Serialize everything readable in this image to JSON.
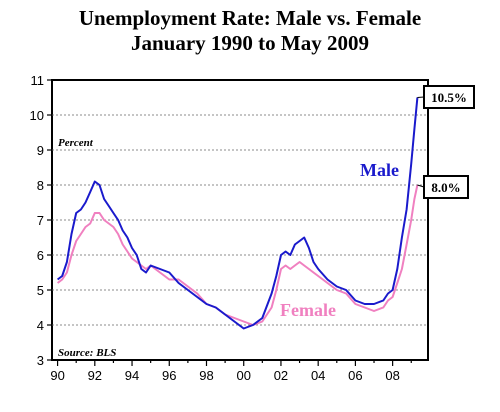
{
  "chart_data": {
    "type": "line",
    "title": "Unemployment Rate: Male vs. Female",
    "subtitle": "January 1990 to May 2009",
    "ylabel_note": "Percent",
    "source_note": "Source: BLS",
    "x_tick_labels": [
      "90",
      "92",
      "94",
      "96",
      "98",
      "00",
      "02",
      "04",
      "06",
      "08"
    ],
    "x_tick_years": [
      1990,
      1992,
      1994,
      1996,
      1998,
      2000,
      2002,
      2004,
      2006,
      2008
    ],
    "xlim": [
      1989.7,
      2009.9
    ],
    "ylim": [
      3,
      11
    ],
    "y_ticks": [
      3,
      4,
      5,
      6,
      7,
      8,
      9,
      10,
      11
    ],
    "grid": "horizontal dotted",
    "series": [
      {
        "name": "Male",
        "color": "#1a1acc",
        "x": [
          1990.0,
          1990.25,
          1990.5,
          1990.75,
          1991.0,
          1991.25,
          1991.5,
          1991.75,
          1992.0,
          1992.25,
          1992.5,
          1992.75,
          1993.0,
          1993.25,
          1993.5,
          1993.75,
          1994.0,
          1994.25,
          1994.5,
          1994.75,
          1995.0,
          1995.5,
          1996.0,
          1996.5,
          1997.0,
          1997.5,
          1998.0,
          1998.5,
          1999.0,
          1999.5,
          2000.0,
          2000.5,
          2001.0,
          2001.5,
          2001.75,
          2002.0,
          2002.25,
          2002.5,
          2002.75,
          2003.0,
          2003.25,
          2003.5,
          2003.75,
          2004.0,
          2004.5,
          2005.0,
          2005.5,
          2006.0,
          2006.5,
          2007.0,
          2007.5,
          2007.75,
          2008.0,
          2008.25,
          2008.5,
          2008.75,
          2009.0,
          2009.17,
          2009.33
        ],
        "values": [
          5.3,
          5.4,
          5.8,
          6.6,
          7.2,
          7.3,
          7.5,
          7.8,
          8.1,
          8.0,
          7.6,
          7.4,
          7.2,
          7.0,
          6.7,
          6.5,
          6.2,
          6.0,
          5.6,
          5.5,
          5.7,
          5.6,
          5.5,
          5.2,
          5.0,
          4.8,
          4.6,
          4.5,
          4.3,
          4.1,
          3.9,
          4.0,
          4.2,
          4.9,
          5.4,
          6.0,
          6.1,
          6.0,
          6.3,
          6.4,
          6.5,
          6.2,
          5.8,
          5.6,
          5.3,
          5.1,
          5.0,
          4.7,
          4.6,
          4.6,
          4.7,
          4.9,
          5.0,
          5.6,
          6.5,
          7.3,
          8.6,
          9.6,
          10.5
        ]
      },
      {
        "name": "Female",
        "color": "#f080c0",
        "x": [
          1990.0,
          1990.25,
          1990.5,
          1990.75,
          1991.0,
          1991.25,
          1991.5,
          1991.75,
          1992.0,
          1992.25,
          1992.5,
          1992.75,
          1993.0,
          1993.25,
          1993.5,
          1993.75,
          1994.0,
          1994.25,
          1994.5,
          1994.75,
          1995.0,
          1995.5,
          1996.0,
          1996.5,
          1997.0,
          1997.5,
          1998.0,
          1998.5,
          1999.0,
          1999.5,
          2000.0,
          2000.5,
          2001.0,
          2001.5,
          2001.75,
          2002.0,
          2002.25,
          2002.5,
          2002.75,
          2003.0,
          2003.25,
          2003.5,
          2003.75,
          2004.0,
          2004.5,
          2005.0,
          2005.5,
          2006.0,
          2006.5,
          2007.0,
          2007.5,
          2007.75,
          2008.0,
          2008.25,
          2008.5,
          2008.75,
          2009.0,
          2009.17,
          2009.33
        ],
        "values": [
          5.2,
          5.3,
          5.5,
          6.0,
          6.4,
          6.6,
          6.8,
          6.9,
          7.2,
          7.2,
          7.0,
          6.9,
          6.8,
          6.6,
          6.3,
          6.1,
          5.9,
          5.8,
          5.7,
          5.6,
          5.7,
          5.5,
          5.3,
          5.3,
          5.1,
          4.9,
          4.6,
          4.5,
          4.3,
          4.2,
          4.1,
          4.0,
          4.1,
          4.5,
          5.0,
          5.6,
          5.7,
          5.6,
          5.7,
          5.8,
          5.7,
          5.6,
          5.5,
          5.4,
          5.2,
          5.0,
          4.9,
          4.6,
          4.5,
          4.4,
          4.5,
          4.7,
          4.8,
          5.2,
          5.6,
          6.3,
          7.0,
          7.6,
          8.0
        ]
      }
    ],
    "callouts": [
      {
        "series": "Male",
        "text": "10.5%"
      },
      {
        "series": "Female",
        "text": "8.0%"
      }
    ]
  }
}
